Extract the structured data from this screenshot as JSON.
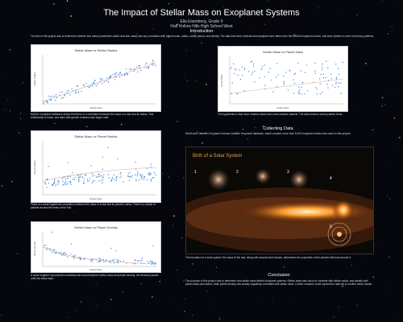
{
  "header": {
    "title": "The Impact of Stellar Mass on Exoplanet Systems",
    "author": "Ella Eisenberg, Grade 9",
    "school": "Half Hollow Hills High School West"
  },
  "sections": {
    "introduction": "Introduction",
    "collecting_data": "Collecting Data",
    "conclusion": "Conclusion"
  },
  "intro_text": "The aim of this project was to determine whether star mass (sometimes called host star mass) has any correlation with planet mass, radius, orbital period, and density. The data that were collected and analyzed were taken from the NASA Exoplanet Archive, and were plotted in order to find any patterns.",
  "charts": {
    "radius": {
      "title": "Stellar Mass vs Stellar Radius",
      "xlabel": "Stellar Mass",
      "ylabel": "Stellar Radius"
    },
    "planet_mass": {
      "title": "Stellar Mass vs Planet Mass",
      "xlabel": "Stellar Mass",
      "ylabel": "Planet Mass"
    },
    "planet_radius": {
      "title": "Stellar Mass vs Planet Radius",
      "xlabel": "Stellar Mass",
      "ylabel": "Planet Radius"
    },
    "planet_density": {
      "title": "Stellar Mass vs Planet Density",
      "xlabel": "Stellar Mass",
      "ylabel": "Planet Density"
    }
  },
  "captions": {
    "radius": "NASA's exoplanet database shows that there is a correlation between the mass of a star and its radius. This relationship is linear, and stars with greater masses have larger radii.",
    "planet_mass": "The hypothesis is that more massive stars have more massive planets. The data shows a weak positive trend.",
    "planet_radius": "There is a weak logarithmic correlation between the mass of a star and its planet's radius. There is a cluster of planets around the mass of the Sun.",
    "planet_density": "A weak negative exponential correlation was found between stellar mass and planet density; the densest planets orbit low mass stars."
  },
  "collecting_text": "NASA and Caltech's Exoplanet Science Institute Exoplanet database, which contains more than 5,000 exoplanet entries was used for this project.",
  "infographic": {
    "title": "Birth of a Solar System",
    "steps": [
      "1",
      "2",
      "3",
      "4",
      "5"
    ]
  },
  "infographic_caption": "The formation of a solar system: the mass of the star, along with several other factors, determines the properties of the planets that form around it.",
  "conclusion_text": "The purpose of this project was to determine how stellar mass affects exoplanet systems. Stellar mass was found to correlate with stellar radius, and weakly with planet mass and radius, while planet density was weakly negatively correlated with stellar mass. Further research could expand the data set to confirm these results.",
  "colors": {
    "background": "#05070d",
    "points": "#4a8fd8",
    "trend": "#e0a49a"
  },
  "chart_data": [
    {
      "type": "scatter",
      "title": "Stellar Mass vs Stellar Radius",
      "xlabel": "Stellar Mass",
      "ylabel": "Stellar Radius",
      "trend": "linear",
      "points": 120,
      "shape": "linear"
    },
    {
      "type": "scatter",
      "title": "Stellar Mass vs Planet Mass",
      "xlabel": "Stellar Mass",
      "ylabel": "Planet Mass",
      "trend": "linear",
      "points": 110,
      "shape": "scatter"
    },
    {
      "type": "scatter",
      "title": "Stellar Mass vs Planet Radius",
      "xlabel": "Stellar Mass",
      "ylabel": "Planet Radius",
      "trend": "logarithmic",
      "points": 160,
      "shape": "band"
    },
    {
      "type": "scatter",
      "title": "Stellar Mass vs Planet Density",
      "xlabel": "Stellar Mass",
      "ylabel": "Planet Density",
      "trend": "exponential",
      "points": 110,
      "shape": "decay"
    }
  ]
}
